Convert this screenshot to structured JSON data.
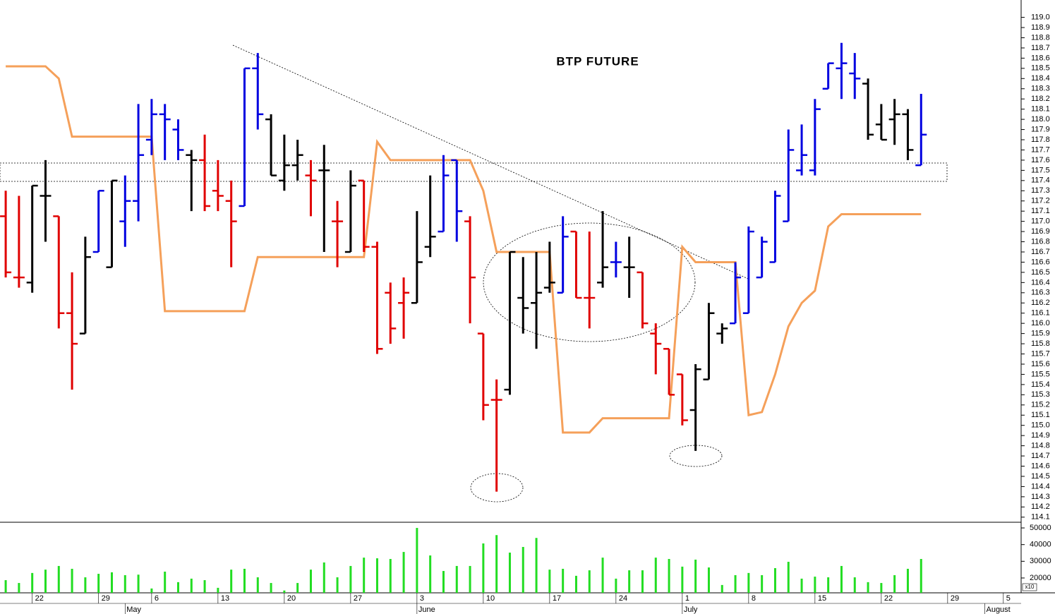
{
  "chart_data": [
    {
      "type": "ohlc",
      "title": "BTP FUTURE",
      "x": [
        0,
        1,
        2,
        3,
        4,
        5,
        6,
        7,
        8,
        9,
        10,
        11,
        12,
        13,
        14,
        15,
        16,
        17,
        18,
        19,
        20,
        21,
        22,
        23,
        24,
        25,
        26,
        27,
        28,
        29,
        30,
        31,
        32,
        33,
        34,
        35,
        36,
        37,
        38,
        39,
        40,
        41,
        42,
        43,
        44,
        45,
        46,
        47,
        48,
        49,
        50,
        51,
        52,
        53,
        54,
        55,
        56,
        57,
        58,
        59,
        60,
        61,
        62,
        63,
        64,
        65,
        66,
        67,
        68,
        69
      ],
      "open": [
        117.05,
        116.45,
        116.4,
        117.25,
        117.05,
        116.1,
        115.9,
        116.7,
        116.55,
        117.0,
        117.2,
        117.8,
        118.05,
        117.9,
        117.65,
        117.6,
        117.3,
        117.2,
        117.15,
        118.5,
        118.0,
        117.4,
        117.55,
        117.45,
        117.5,
        117.0,
        116.7,
        117.4,
        116.75,
        116.3,
        116.2,
        116.2,
        116.75,
        116.9,
        117.6,
        117.0,
        115.9,
        115.25,
        115.35,
        116.25,
        116.2,
        116.35,
        116.3,
        116.9,
        116.25,
        116.4,
        116.6,
        116.55,
        116.5,
        115.9,
        115.75,
        115.5,
        115.15,
        115.45,
        115.9,
        116.0,
        116.1,
        116.45,
        116.6,
        117.0,
        117.5,
        117.5,
        118.3,
        118.5,
        118.45,
        118.35,
        117.95,
        118.0,
        118.05,
        117.55
      ],
      "high": [
        117.3,
        117.25,
        117.35,
        117.6,
        117.05,
        116.5,
        116.85,
        117.3,
        117.4,
        117.45,
        118.15,
        118.2,
        118.15,
        118.0,
        117.7,
        117.85,
        117.6,
        117.4,
        118.5,
        118.65,
        118.05,
        117.85,
        117.8,
        117.6,
        117.75,
        117.2,
        117.5,
        117.4,
        116.8,
        116.4,
        116.45,
        117.1,
        117.45,
        117.65,
        117.6,
        117.05,
        115.9,
        115.45,
        116.7,
        116.65,
        116.7,
        116.8,
        117.05,
        116.9,
        116.9,
        117.1,
        116.8,
        116.85,
        116.5,
        116.0,
        115.75,
        115.5,
        115.6,
        116.2,
        116.0,
        116.6,
        116.95,
        116.85,
        117.3,
        117.9,
        117.95,
        118.2,
        118.55,
        118.75,
        118.65,
        118.4,
        118.15,
        118.2,
        118.1,
        118.25
      ],
      "low": [
        116.45,
        116.35,
        116.3,
        116.8,
        115.95,
        115.35,
        115.9,
        116.7,
        116.55,
        116.75,
        117.0,
        117.65,
        117.6,
        117.6,
        117.1,
        117.1,
        117.1,
        116.55,
        117.15,
        117.9,
        117.45,
        117.3,
        117.4,
        117.05,
        116.7,
        116.55,
        116.7,
        116.7,
        115.7,
        115.8,
        115.85,
        116.2,
        116.65,
        116.9,
        116.8,
        116.0,
        115.05,
        114.35,
        115.3,
        115.9,
        115.75,
        116.3,
        116.3,
        116.25,
        115.95,
        116.35,
        116.45,
        116.25,
        115.95,
        115.5,
        115.3,
        115.0,
        114.75,
        115.45,
        115.8,
        116.0,
        116.1,
        116.45,
        116.6,
        117.0,
        117.45,
        117.45,
        118.3,
        118.2,
        118.2,
        117.8,
        117.8,
        117.75,
        117.6,
        117.55
      ],
      "close": [
        116.5,
        116.45,
        117.35,
        117.25,
        116.1,
        115.8,
        116.65,
        117.3,
        117.4,
        117.2,
        117.65,
        118.05,
        118.0,
        117.7,
        117.6,
        117.15,
        117.25,
        117.0,
        118.5,
        118.05,
        117.45,
        117.55,
        117.65,
        117.4,
        117.5,
        117.0,
        117.35,
        116.75,
        115.75,
        115.95,
        116.3,
        116.6,
        116.85,
        117.45,
        117.1,
        116.45,
        115.2,
        115.25,
        116.7,
        116.15,
        116.3,
        116.4,
        116.85,
        116.25,
        116.25,
        116.55,
        116.6,
        116.55,
        116.0,
        115.8,
        115.3,
        115.05,
        115.55,
        116.1,
        115.95,
        116.45,
        116.9,
        116.8,
        117.25,
        117.7,
        117.65,
        118.1,
        118.55,
        118.55,
        118.4,
        117.85,
        117.8,
        118.05,
        117.7,
        117.85
      ],
      "colors": [
        "#e00000",
        "#e00000",
        "#000000",
        "#000000",
        "#e00000",
        "#e00000",
        "#000000",
        "#0000e0",
        "#000000",
        "#0000e0",
        "#0000e0",
        "#0000e0",
        "#0000e0",
        "#0000e0",
        "#000000",
        "#e00000",
        "#e00000",
        "#e00000",
        "#0000e0",
        "#0000e0",
        "#000000",
        "#000000",
        "#000000",
        "#e00000",
        "#000000",
        "#e00000",
        "#000000",
        "#e00000",
        "#e00000",
        "#e00000",
        "#e00000",
        "#000000",
        "#000000",
        "#0000e0",
        "#0000e0",
        "#e00000",
        "#e00000",
        "#e00000",
        "#000000",
        "#000000",
        "#000000",
        "#000000",
        "#0000e0",
        "#e00000",
        "#e00000",
        "#000000",
        "#0000e0",
        "#000000",
        "#e00000",
        "#e00000",
        "#e00000",
        "#e00000",
        "#000000",
        "#000000",
        "#000000",
        "#0000e0",
        "#0000e0",
        "#0000e0",
        "#0000e0",
        "#0000e0",
        "#0000e0",
        "#0000e0",
        "#0000e0",
        "#0000e0",
        "#0000e0",
        "#000000",
        "#000000",
        "#000000",
        "#000000",
        "#0000e0"
      ],
      "series": [
        {
          "color": "#f5a05a",
          "values": [
            118.52,
            118.52,
            118.52,
            118.52,
            118.4,
            117.83,
            117.83,
            117.83,
            117.83,
            117.83,
            117.83,
            117.83,
            116.12,
            116.12,
            116.12,
            116.12,
            116.12,
            116.12,
            116.12,
            116.65,
            116.65,
            116.65,
            116.65,
            116.65,
            116.65,
            116.65,
            116.65,
            116.65,
            117.78,
            117.6,
            117.6,
            117.6,
            117.6,
            117.6,
            117.6,
            117.6,
            117.3,
            116.7,
            116.7,
            116.7,
            116.7,
            116.7,
            114.93,
            114.93,
            114.93,
            115.07,
            115.07,
            115.07,
            115.07,
            115.07,
            115.07,
            116.75,
            116.6,
            116.6,
            116.6,
            116.6,
            115.1,
            115.13,
            115.5,
            115.97,
            116.2,
            116.32,
            116.95,
            117.07,
            117.07,
            117.07,
            117.07,
            117.07,
            117.07,
            117.07
          ]
        }
      ],
      "xlim": [
        -0.43,
        76.54
      ],
      "xticks": [
        {
          "value": 2,
          "label": "22"
        },
        {
          "value": 7,
          "label": "29"
        },
        {
          "value": 11,
          "label": "6"
        },
        {
          "value": 16,
          "label": "13"
        },
        {
          "value": 21,
          "label": "20"
        },
        {
          "value": 26,
          "label": "27"
        },
        {
          "value": 31,
          "label": "3"
        },
        {
          "value": 36,
          "label": "10"
        },
        {
          "value": 41,
          "label": "17"
        },
        {
          "value": 46,
          "label": "24"
        },
        {
          "value": 51,
          "label": "1"
        },
        {
          "value": 56,
          "label": "8"
        },
        {
          "value": 61,
          "label": "15"
        },
        {
          "value": 66,
          "label": "22"
        },
        {
          "value": 71,
          "label": "29"
        },
        {
          "value": 75.2,
          "label": "5"
        }
      ],
      "month_ticks": [
        {
          "value": 9,
          "label": "May"
        },
        {
          "value": 31,
          "label": "June"
        },
        {
          "value": 51,
          "label": "July"
        },
        {
          "value": 73.8,
          "label": "August"
        }
      ],
      "ylim": [
        114.05,
        119.17
      ],
      "yticks": [
        114.1,
        114.2,
        114.3,
        114.4,
        114.5,
        114.6,
        114.7,
        114.8,
        114.9,
        {
          "value": 115,
          "label": "115.0"
        },
        115.1,
        115.2,
        115.3,
        115.4,
        115.5,
        115.6,
        115.7,
        115.8,
        115.9,
        {
          "value": 116,
          "label": "116.0"
        },
        116.1,
        116.2,
        116.3,
        116.4,
        116.5,
        116.6,
        116.7,
        116.8,
        116.9,
        {
          "value": 117,
          "label": "117.0"
        },
        117.1,
        117.2,
        117.3,
        117.4,
        117.5,
        117.6,
        117.7,
        117.8,
        117.9,
        {
          "value": 118,
          "label": "118.0"
        },
        118.1,
        118.2,
        118.3,
        118.4,
        118.5,
        118.6,
        118.7,
        118.8,
        118.9,
        {
          "value": 119,
          "label": "119.0"
        }
      ]
    },
    {
      "type": "bar",
      "color": "#22dd22",
      "unit_label": "x10",
      "values": [
        18700,
        17000,
        23000,
        25000,
        27200,
        25500,
        20400,
        22500,
        23400,
        21700,
        22000,
        13700,
        23800,
        17500,
        19600,
        18700,
        14100,
        25000,
        25500,
        20400,
        17000,
        12500,
        17000,
        25000,
        29300,
        20400,
        27200,
        32200,
        31800,
        31400,
        35600,
        50000,
        33500,
        24200,
        27200,
        27200,
        40700,
        45700,
        35200,
        38600,
        44000,
        25000,
        25500,
        21300,
        24600,
        32200,
        19600,
        24600,
        24600,
        32200,
        31400,
        26800,
        31000,
        26300,
        15800,
        21700,
        23000,
        21700,
        25900,
        29700,
        19600,
        20800,
        20400,
        27200,
        20400,
        17500,
        17000,
        21700,
        25500,
        31400
      ],
      "ylim": [
        11100,
        53400
      ],
      "yticks": [
        20000,
        30000,
        40000,
        50000
      ]
    }
  ]
}
